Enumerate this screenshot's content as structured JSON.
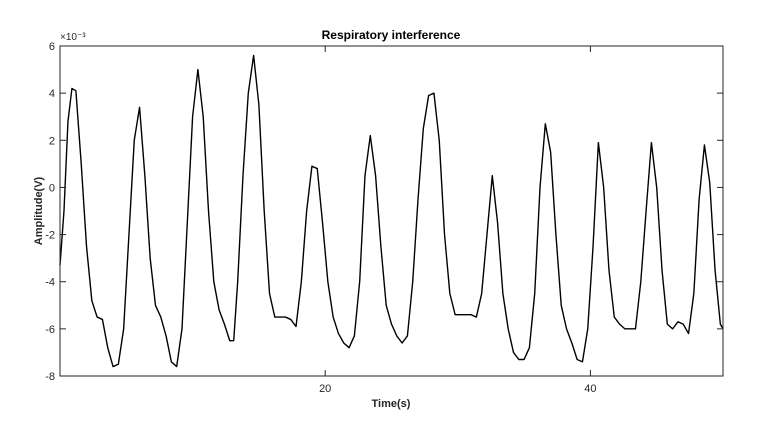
{
  "chart_data": {
    "type": "line",
    "title": "Respiratory interference",
    "xlabel": "Time(s)",
    "ylabel": "Amplitude(V)",
    "y_exponent_label": "×10⁻³",
    "xlim": [
      0,
      50
    ],
    "ylim": [
      -8,
      6
    ],
    "x_ticks": [
      20,
      40
    ],
    "x_tick_labels": [
      "20",
      "40"
    ],
    "y_ticks": [
      -8,
      -6,
      -4,
      -2,
      0,
      2,
      4,
      6
    ],
    "y_tick_labels": [
      "-8",
      "-6",
      "-4",
      "-2",
      "0",
      "2",
      "4",
      "6"
    ],
    "grid": false,
    "line_color": "#000000",
    "series": [
      {
        "x": [
          0,
          0.3,
          0.6,
          0.9,
          1.2,
          1.6,
          2.0,
          2.4,
          2.8,
          3.2,
          3.6,
          4.0,
          4.4,
          4.8,
          5.2,
          5.6,
          6.0,
          6.4,
          6.8,
          7.2,
          7.6,
          8.0,
          8.4,
          8.8,
          9.2,
          9.6,
          10.0,
          10.4,
          10.8,
          11.2,
          11.6,
          12.0,
          12.4,
          12.8,
          13.1,
          13.4,
          13.8,
          14.2,
          14.6,
          15.0,
          15.4,
          15.8,
          16.2,
          16.6,
          17.0,
          17.4,
          17.8,
          18.2,
          18.6,
          19.0,
          19.4,
          19.8,
          20.2,
          20.6,
          21.0,
          21.4,
          21.8,
          22.2,
          22.6,
          23.0,
          23.4,
          23.8,
          24.2,
          24.6,
          25.0,
          25.4,
          25.8,
          26.2,
          26.6,
          27.0,
          27.4,
          27.8,
          28.2,
          28.6,
          29.0,
          29.4,
          29.8,
          30.2,
          30.6,
          31.0,
          31.4,
          31.8,
          32.2,
          32.6,
          33.0,
          33.4,
          33.8,
          34.2,
          34.6,
          35.0,
          35.4,
          35.8,
          36.2,
          36.6,
          37.0,
          37.4,
          37.8,
          38.2,
          38.6,
          39.0,
          39.4,
          39.8,
          40.2,
          40.6,
          41.0,
          41.4,
          41.8,
          42.2,
          42.6,
          43.0,
          43.4,
          43.8,
          44.2,
          44.6,
          45.0,
          45.4,
          45.8,
          46.2,
          46.6,
          47.0,
          47.4,
          47.8,
          48.2,
          48.6,
          49.0,
          49.4,
          49.8,
          50.0
        ],
        "y": [
          -3.3,
          -1.0,
          2.8,
          4.2,
          4.1,
          1.0,
          -2.5,
          -4.8,
          -5.5,
          -5.6,
          -6.8,
          -7.6,
          -7.5,
          -6.0,
          -2.0,
          2.0,
          3.4,
          0.5,
          -3.0,
          -5.0,
          -5.5,
          -6.3,
          -7.4,
          -7.6,
          -6.0,
          -1.5,
          3.0,
          5.0,
          3.0,
          -1.0,
          -4.0,
          -5.2,
          -5.8,
          -6.5,
          -6.5,
          -4.0,
          0.5,
          4.0,
          5.6,
          3.5,
          -1.0,
          -4.5,
          -5.5,
          -5.5,
          -5.5,
          -5.6,
          -5.9,
          -4.0,
          -1.0,
          0.9,
          0.8,
          -1.5,
          -4.0,
          -5.5,
          -6.2,
          -6.6,
          -6.8,
          -6.3,
          -4.0,
          0.5,
          2.2,
          0.5,
          -2.5,
          -5.0,
          -5.8,
          -6.3,
          -6.6,
          -6.3,
          -4.0,
          -0.5,
          2.5,
          3.9,
          4.0,
          2.0,
          -2.0,
          -4.5,
          -5.4,
          -5.4,
          -5.4,
          -5.4,
          -5.5,
          -4.5,
          -2.0,
          0.5,
          -1.5,
          -4.5,
          -6.0,
          -7.0,
          -7.3,
          -7.3,
          -6.8,
          -4.5,
          0.0,
          2.7,
          1.5,
          -2.0,
          -5.0,
          -6.0,
          -6.6,
          -7.3,
          -7.4,
          -6.0,
          -2.5,
          1.9,
          0.0,
          -3.5,
          -5.5,
          -5.8,
          -6.0,
          -6.0,
          -6.0,
          -4.0,
          -1.0,
          1.9,
          0.0,
          -3.5,
          -5.8,
          -6.0,
          -5.7,
          -5.8,
          -6.2,
          -4.5,
          -0.5,
          1.8,
          0.2,
          -3.5,
          -5.8,
          -6.0
        ]
      }
    ]
  }
}
